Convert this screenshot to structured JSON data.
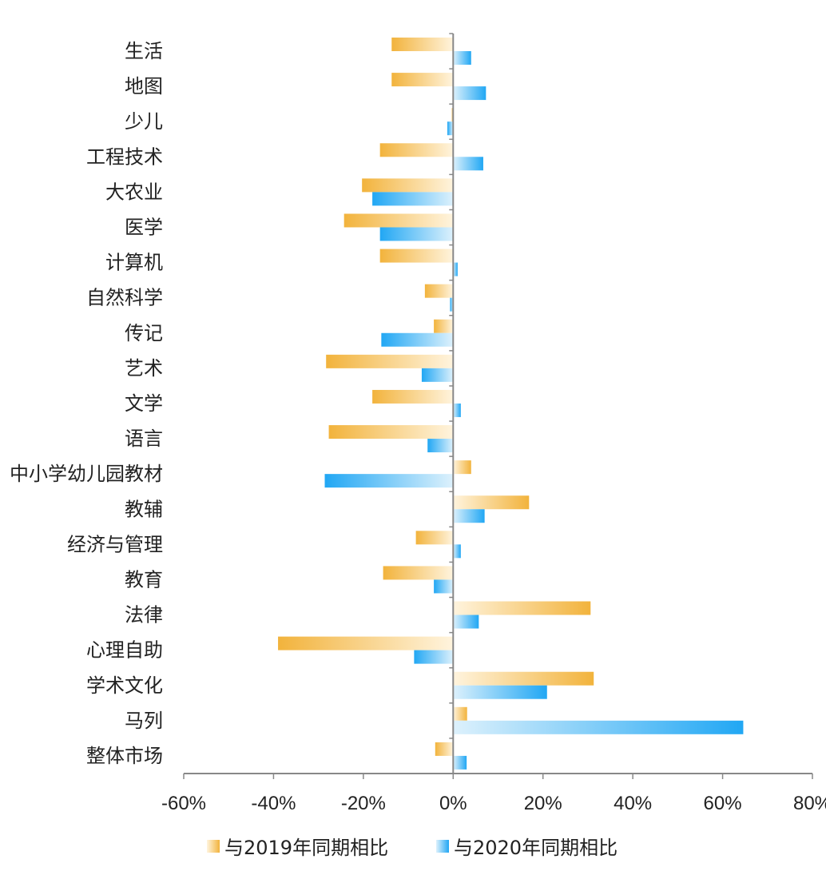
{
  "chart_data": {
    "type": "bar",
    "orientation": "horizontal",
    "categories": [
      "生活",
      "地图",
      "少儿",
      "工程技术",
      "大农业",
      "医学",
      "计算机",
      "自然科学",
      "传记",
      "艺术",
      "文学",
      "语言",
      "中小学幼儿园教材",
      "教辅",
      "经济与管理",
      "教育",
      "法律",
      "心理自助",
      "学术文化",
      "马列",
      "整体市场"
    ],
    "series": [
      {
        "name": "与2019年同期相比",
        "values": [
          -13.7,
          -13.7,
          -0.3,
          -16.3,
          -20.3,
          -24.3,
          -16.3,
          -6.3,
          -4.3,
          -28.3,
          -18.0,
          -27.7,
          4.0,
          16.9,
          -8.3,
          -15.6,
          30.6,
          -39.0,
          31.3,
          3.1,
          -4.0
        ]
      },
      {
        "name": "与2020年同期相比",
        "values": [
          4.0,
          7.3,
          -1.3,
          6.7,
          -18.0,
          -16.3,
          1.0,
          -0.7,
          -16.0,
          -7.0,
          1.7,
          -5.7,
          -28.6,
          7.0,
          1.7,
          -4.3,
          5.7,
          -8.7,
          20.9,
          64.6,
          3.0
        ]
      }
    ],
    "xlim": [
      -60,
      80
    ],
    "xticks": [
      -60,
      -40,
      -20,
      0,
      20,
      40,
      60,
      80
    ],
    "tick_labels": [
      "-60%",
      "-40%",
      "-20%",
      "0%",
      "20%",
      "40%",
      "60%",
      "80%"
    ],
    "legend_position": "bottom",
    "colors": {
      "series1_dark": "#F2B33C",
      "series1_light": "#FFF4DE",
      "series2_dark": "#21A7F4",
      "series2_light": "#DDF1FC",
      "axis": "#888888"
    }
  }
}
